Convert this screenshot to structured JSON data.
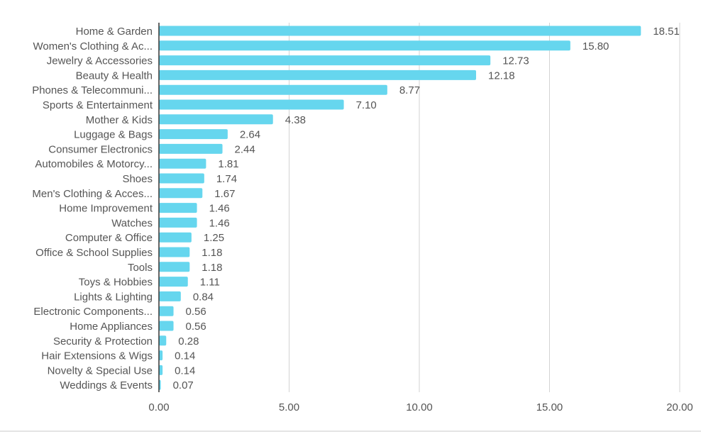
{
  "chart_data": {
    "type": "bar",
    "orientation": "horizontal",
    "title": "",
    "xlabel": "",
    "ylabel": "",
    "xlim": [
      0,
      20
    ],
    "x_ticks": [
      "0.00",
      "5.00",
      "10.00",
      "15.00",
      "20.00"
    ],
    "grid": true,
    "legend": "none",
    "bar_color": "#66d6ee",
    "categories": [
      "Home & Garden",
      "Women's Clothing & Ac...",
      "Jewelry & Accessories",
      "Beauty & Health",
      "Phones & Telecommuni...",
      "Sports & Entertainment",
      "Mother & Kids",
      "Luggage & Bags",
      "Consumer Electronics",
      "Automobiles & Motorcy...",
      "Shoes",
      "Men's Clothing & Acces...",
      "Home Improvement",
      "Watches",
      "Computer & Office",
      "Office & School Supplies",
      "Tools",
      "Toys & Hobbies",
      "Lights & Lighting",
      "Electronic Components...",
      "Home Appliances",
      "Security & Protection",
      "Hair Extensions & Wigs",
      "Novelty & Special Use",
      "Weddings & Events"
    ],
    "values": [
      18.51,
      15.8,
      12.73,
      12.18,
      8.77,
      7.1,
      4.38,
      2.64,
      2.44,
      1.81,
      1.74,
      1.67,
      1.46,
      1.46,
      1.25,
      1.18,
      1.18,
      1.11,
      0.84,
      0.56,
      0.56,
      0.28,
      0.14,
      0.14,
      0.07
    ],
    "value_labels": [
      "18.51",
      "15.80",
      "12.73",
      "12.18",
      "8.77",
      "7.10",
      "4.38",
      "2.64",
      "2.44",
      "1.81",
      "1.74",
      "1.67",
      "1.46",
      "1.46",
      "1.25",
      "1.18",
      "1.18",
      "1.11",
      "0.84",
      "0.56",
      "0.56",
      "0.28",
      "0.14",
      "0.14",
      "0.07"
    ]
  }
}
